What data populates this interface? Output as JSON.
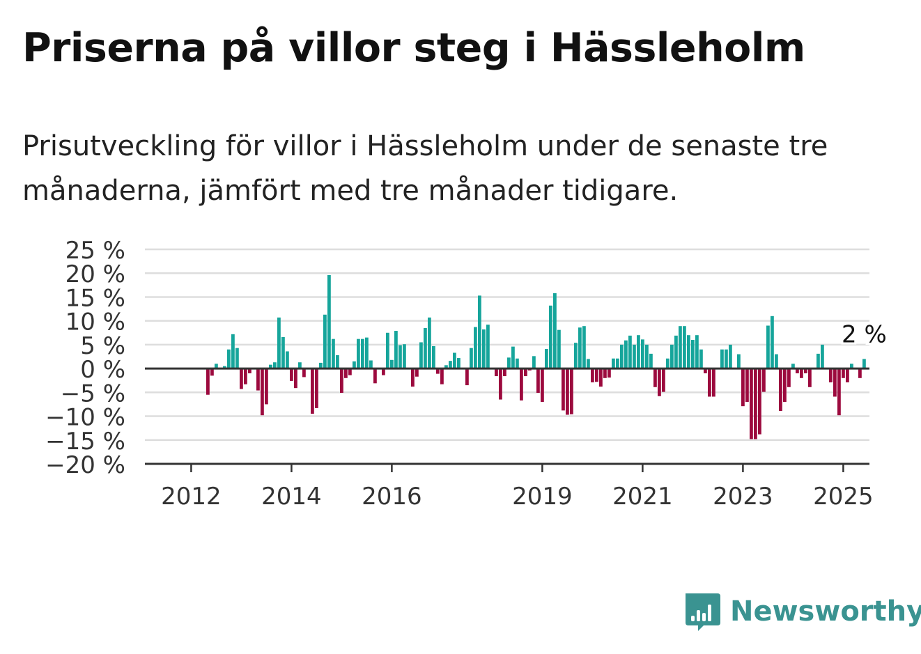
{
  "header": {
    "title": "Priserna på villor steg i Hässleholm",
    "subtitle": "Prisutveckling för villor i Hässleholm under de senaste tre månaderna, jämfört med tre månader tidigare."
  },
  "brand": {
    "name": "Newsworthy",
    "icon": "newsworthy-logo-icon",
    "color": "#3a9391"
  },
  "chart_data": {
    "type": "bar",
    "title": "",
    "xlabel": "",
    "ylabel": "",
    "x_start": "2011-10",
    "x_step": "month",
    "ylim": [
      -20,
      25
    ],
    "yticks": [
      25,
      20,
      15,
      10,
      5,
      0,
      -5,
      -10,
      -15,
      -20
    ],
    "ytick_labels": [
      "25 %",
      "20 %",
      "15 %",
      "10 %",
      "5 %",
      "0 %",
      "−5 %",
      "−10 %",
      "−15 %",
      "−20 %"
    ],
    "xticks": [
      2012,
      2014,
      2016,
      2019,
      2021,
      2023,
      2025
    ],
    "xtick_labels": [
      "2012",
      "2014",
      "2016",
      "2019",
      "2021",
      "2023",
      "2025"
    ],
    "grid": true,
    "colors": {
      "positive": "#16a59b",
      "negative": "#9c0a3e",
      "grid": "#dddddd",
      "axis": "#333333"
    },
    "annotation": {
      "text": "2 %",
      "target": "last"
    },
    "values": [
      0,
      0,
      0,
      0,
      0,
      0,
      0,
      -5.5,
      -1.5,
      1,
      0,
      0.5,
      4,
      7.2,
      4.3,
      -4.3,
      -3.3,
      -1,
      0,
      -4.6,
      -9.8,
      -7.5,
      0.8,
      1.3,
      10.7,
      6.6,
      3.6,
      -2.6,
      -4.1,
      1.3,
      -1.8,
      0,
      -9.5,
      -8.3,
      1.2,
      11.3,
      19.6,
      6.2,
      2.8,
      -5.1,
      -2,
      -1.4,
      1.5,
      6.2,
      6.2,
      6.5,
      1.7,
      -3.1,
      0,
      -1.4,
      7.5,
      1.8,
      7.9,
      4.9,
      5.1,
      0,
      -3.8,
      -1.7,
      5.5,
      8.5,
      10.7,
      4.7,
      -1.1,
      -3.3,
      0.7,
      1.6,
      3.3,
      2.2,
      0,
      -3.5,
      4.3,
      8.7,
      15.3,
      8.2,
      9.2,
      0,
      -1.6,
      -6.5,
      -1.6,
      2.3,
      4.6,
      2.1,
      -6.7,
      -1.6,
      -0.4,
      2.6,
      -5.1,
      -7,
      4.1,
      13.2,
      15.8,
      8.1,
      -8.8,
      -9.7,
      -9.6,
      5.4,
      8.6,
      8.9,
      2,
      -2.9,
      -2.8,
      -3.8,
      -2,
      -1.9,
      2.1,
      2.1,
      5,
      5.9,
      6.9,
      5,
      7,
      6.1,
      5,
      3.1,
      -3.9,
      -5.8,
      -4.9,
      2.1,
      5,
      6.9,
      8.9,
      8.9,
      7,
      6,
      7,
      4,
      -1,
      -5.9,
      -5.9,
      0,
      4,
      4,
      5,
      0,
      3,
      -7.9,
      -7,
      -14.8,
      -14.8,
      -13.8,
      -4.9,
      9,
      11,
      3,
      -8.9,
      -7,
      -3.9,
      1,
      -1,
      -2,
      -1,
      -3.9,
      0,
      3.1,
      5,
      0,
      -2.9,
      -5.9,
      -9.8,
      -2,
      -2.9,
      1,
      0,
      -2,
      2
    ]
  }
}
